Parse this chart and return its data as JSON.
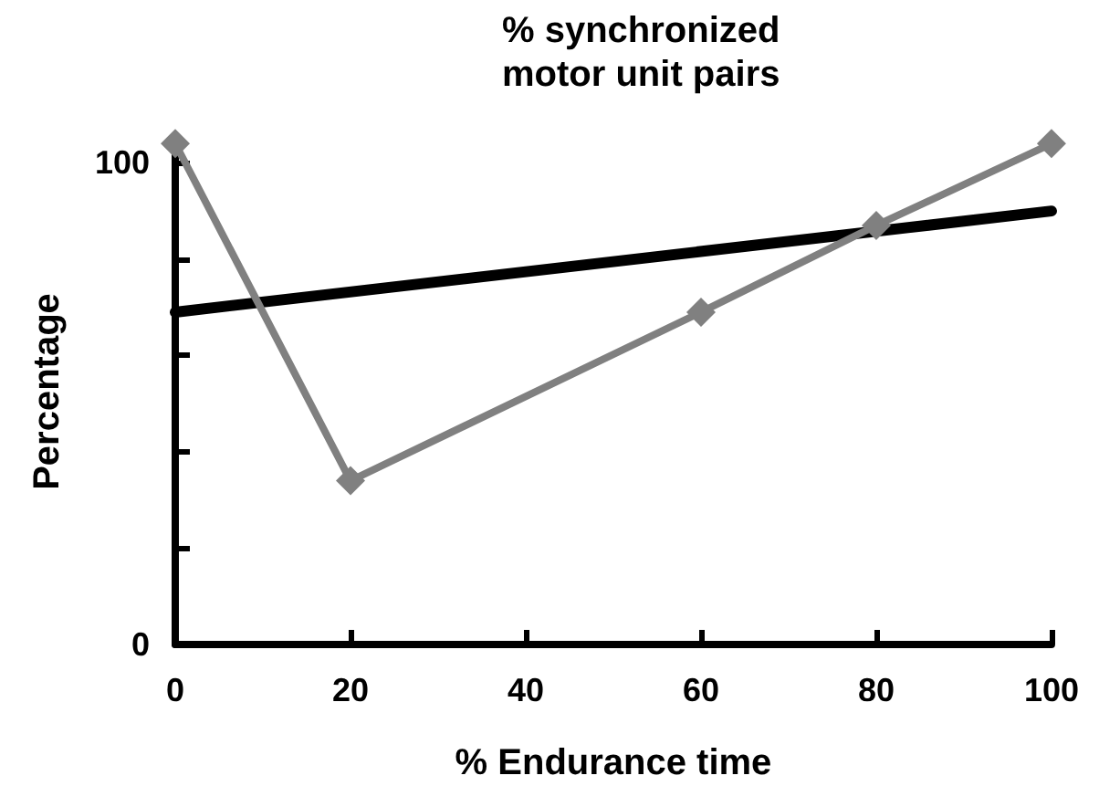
{
  "chart_data": {
    "type": "line",
    "title": "% synchronized\nmotor unit pairs",
    "xlabel": "% Endurance time",
    "ylabel": "Percentage",
    "xlim": [
      0,
      100
    ],
    "xticks": [
      0,
      20,
      40,
      60,
      80,
      100
    ],
    "ylim": [
      0,
      105
    ],
    "yticks": [
      0,
      {
        "value": 20,
        "label": null
      },
      {
        "value": 40,
        "label": null
      },
      {
        "value": 60,
        "label": null
      },
      {
        "value": 80,
        "label": null
      },
      100
    ],
    "series": [
      {
        "color": "#808080",
        "x": [
          0,
          20,
          60,
          80,
          100
        ],
        "values": [
          104,
          34,
          69,
          87,
          104
        ],
        "marker": "diamond"
      },
      {
        "color": "#000000",
        "x": [
          0,
          100
        ],
        "values": [
          69,
          90
        ],
        "marker": "none"
      }
    ]
  }
}
